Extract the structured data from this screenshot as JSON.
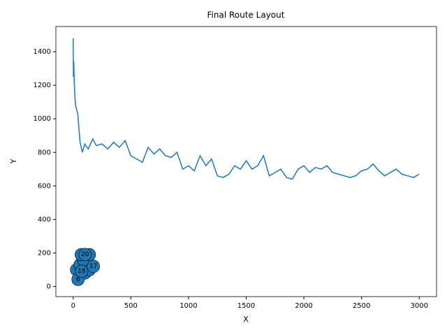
{
  "chart_data": {
    "type": "line",
    "title": "Final Route Layout",
    "x_label": "X",
    "y_label": "Y",
    "xlim": [
      -150,
      3150
    ],
    "ylim": [
      -60,
      1550
    ],
    "xticks": [
      0,
      500,
      1000,
      1500,
      2000,
      2500,
      3000
    ],
    "yticks": [
      0,
      200,
      400,
      600,
      800,
      1000,
      1200,
      1400
    ],
    "series": [
      {
        "type": "line",
        "color": "#1f77b4",
        "x": [
          0,
          2,
          5,
          10,
          20,
          40,
          45,
          60,
          80,
          100,
          130,
          170,
          200,
          250,
          300,
          350,
          400,
          450,
          500,
          550,
          600,
          650,
          700,
          750,
          800,
          850,
          900,
          950,
          1000,
          1050,
          1100,
          1150,
          1200,
          1250,
          1300,
          1350,
          1400,
          1450,
          1500,
          1550,
          1600,
          1650,
          1700,
          1750,
          1800,
          1850,
          1900,
          1950,
          2000,
          2050,
          2100,
          2150,
          2200,
          2250,
          2300,
          2350,
          2400,
          2450,
          2500,
          2550,
          2600,
          2650,
          2700,
          2750,
          2800,
          2850,
          2900,
          2950,
          3000
        ],
        "values": [
          1480,
          1250,
          1340,
          1200,
          1080,
          1030,
          980,
          860,
          800,
          850,
          820,
          880,
          840,
          850,
          820,
          860,
          830,
          870,
          780,
          760,
          740,
          830,
          790,
          820,
          780,
          770,
          800,
          700,
          720,
          690,
          780,
          720,
          760,
          660,
          650,
          670,
          720,
          700,
          750,
          700,
          720,
          780,
          660,
          680,
          700,
          650,
          640,
          700,
          720,
          680,
          710,
          700,
          720,
          680,
          670,
          660,
          650,
          660,
          690,
          700,
          730,
          690,
          660,
          680,
          700,
          670,
          660,
          650,
          670
        ]
      },
      {
        "type": "scatter",
        "color": "#1f77b4",
        "x": [
          30,
          60,
          100,
          140,
          90,
          70,
          140,
          42,
          73,
          175,
          103
        ],
        "values": [
          100,
          130,
          80,
          100,
          160,
          190,
          190,
          42,
          91,
          120,
          191
        ],
        "labels": [
          null,
          null,
          null,
          null,
          null,
          null,
          null,
          "6",
          "18",
          "17",
          "20"
        ]
      }
    ]
  }
}
